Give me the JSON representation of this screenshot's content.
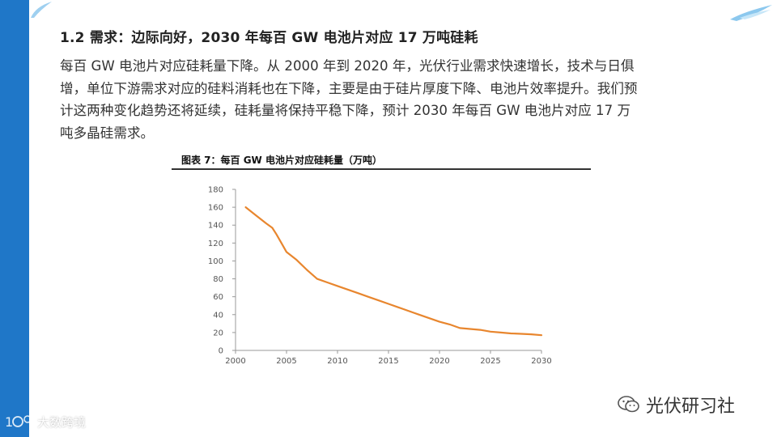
{
  "heading": "1.2 需求：边际向好，2030 年每百 GW 电池片对应 17 万吨硅耗",
  "paragraph_lines": [
    "每百 GW 电池片对应硅耗量下降。从 2000 年到 2020 年，光伏行业需求快速增长，技术与日俱",
    "增，单位下游需求对应的硅料消耗也在下降，主要是由于硅片厚度下降、电池片效率提升。我们预",
    "计这两种变化趋势还将延续，硅耗量将保持平稳下降，预计 2030 年每百 GW 电池片对应 17 万",
    "吨多晶硅需求。"
  ],
  "figure_title": "图表 7：每百 GW 电池片对应硅耗量（万吨）",
  "watermark_right": "光伏研习社",
  "watermark_left": "大数跨境",
  "colors": {
    "sidebar": "#1f77c8",
    "line": "#e8862e",
    "axis": "#999999",
    "tick_text": "#555555"
  },
  "chart_data": {
    "type": "line",
    "title": "",
    "xlabel": "",
    "ylabel": "",
    "xlim": [
      2000,
      2030
    ],
    "ylim": [
      0,
      180
    ],
    "x_ticks": [
      2000,
      2005,
      2010,
      2015,
      2020,
      2025,
      2030
    ],
    "y_ticks": [
      0,
      20,
      40,
      60,
      80,
      100,
      120,
      140,
      160,
      180
    ],
    "grid": false,
    "series": [
      {
        "x": [
          2001,
          2002,
          2003,
          2003.6,
          2004,
          2004.5,
          2005,
          2006,
          2007,
          2008,
          2009,
          2010,
          2011,
          2012,
          2013,
          2014,
          2015,
          2016,
          2017,
          2018,
          2019,
          2020,
          2021,
          2022,
          2023,
          2024,
          2025,
          2026,
          2027,
          2028,
          2029,
          2030
        ],
        "values": [
          160,
          151,
          142,
          137,
          130,
          120,
          110,
          101,
          90,
          80,
          76,
          72,
          68,
          64,
          60,
          56,
          52,
          48,
          44,
          40,
          36,
          32,
          29,
          25,
          24,
          23,
          21,
          20,
          19,
          18.5,
          18,
          17
        ]
      }
    ]
  }
}
